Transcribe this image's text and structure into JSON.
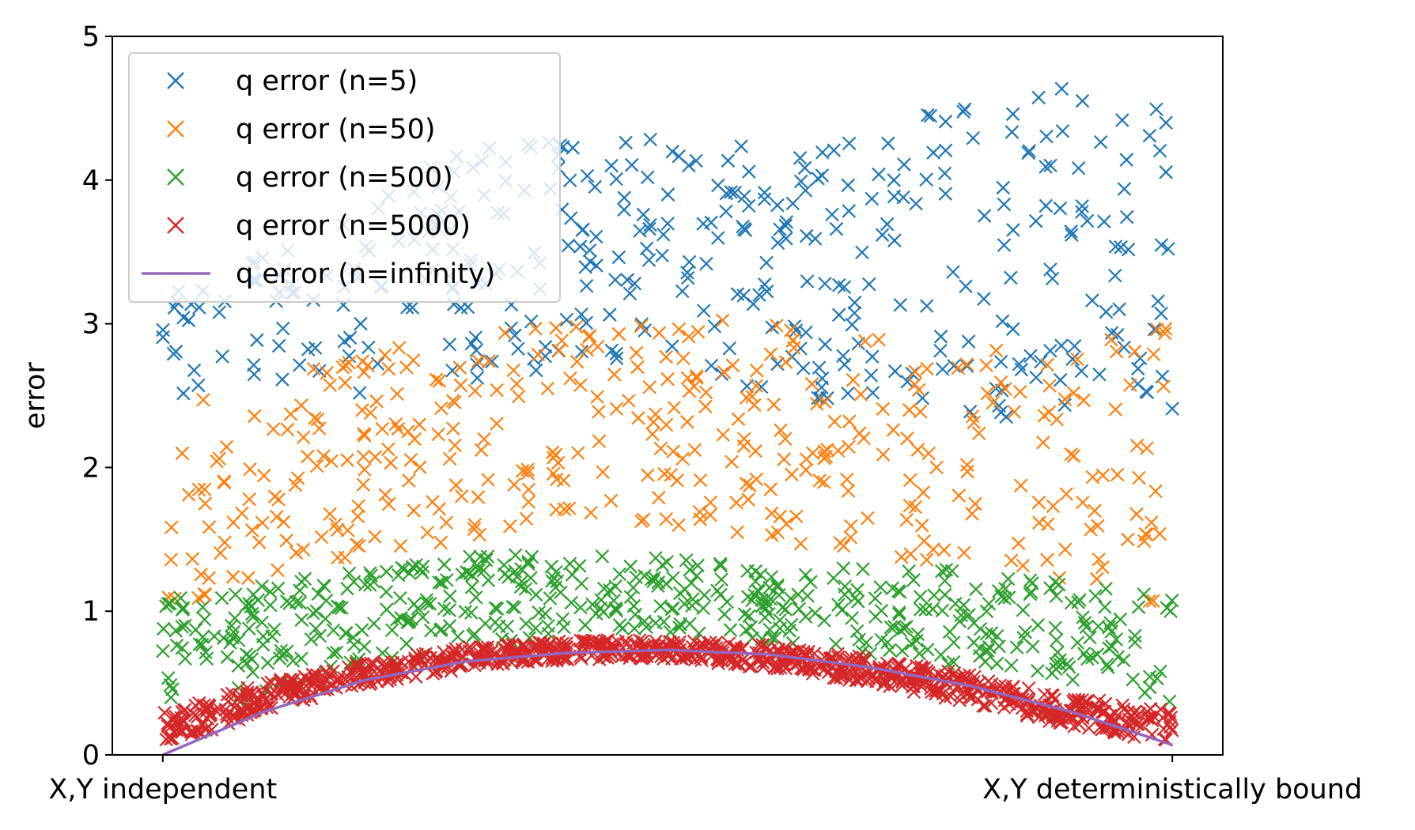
{
  "chart_data": {
    "type": "scatter",
    "title": "",
    "xlabel": "",
    "ylabel": "error",
    "xlim": [
      -0.05,
      1.05
    ],
    "ylim": [
      0,
      5
    ],
    "x_ticks": [
      {
        "value": 0,
        "label": "X,Y independent"
      },
      {
        "value": 1,
        "label": "X,Y deterministically bound"
      }
    ],
    "y_ticks": [
      0,
      1,
      2,
      3,
      4,
      5
    ],
    "grid": false,
    "legend_position": "upper-left",
    "series": [
      {
        "name": "q error (n=5)",
        "kind": "scatter",
        "marker": "x",
        "color": "#1f77b4",
        "count": 400,
        "envelope_x": [
          0,
          0.1,
          0.2,
          0.3,
          0.4,
          0.5,
          0.6,
          0.7,
          0.8,
          0.9,
          1.0
        ],
        "envelope_low": [
          2.5,
          2.5,
          2.5,
          2.6,
          2.7,
          2.8,
          2.5,
          2.4,
          2.3,
          2.4,
          2.4
        ],
        "envelope_high": [
          3.4,
          3.6,
          3.9,
          4.2,
          4.3,
          4.3,
          4.3,
          4.3,
          4.6,
          4.8,
          4.9
        ]
      },
      {
        "name": "q error (n=50)",
        "kind": "scatter",
        "marker": "x",
        "color": "#ff7f0e",
        "count": 400,
        "envelope_x": [
          0,
          0.1,
          0.2,
          0.3,
          0.4,
          0.5,
          0.6,
          0.7,
          0.8,
          0.9,
          1.0
        ],
        "envelope_low": [
          0.9,
          1.2,
          1.4,
          1.5,
          1.6,
          1.6,
          1.5,
          1.4,
          1.3,
          1.2,
          1.0
        ],
        "envelope_high": [
          2.4,
          2.6,
          2.8,
          2.9,
          3.0,
          3.1,
          3.0,
          2.9,
          2.8,
          2.9,
          3.0
        ]
      },
      {
        "name": "q error (n=500)",
        "kind": "scatter",
        "marker": "x",
        "color": "#2ca02c",
        "count": 500,
        "envelope_x": [
          0,
          0.1,
          0.2,
          0.3,
          0.4,
          0.5,
          0.6,
          0.7,
          0.8,
          0.9,
          1.0
        ],
        "envelope_low": [
          0.2,
          0.4,
          0.6,
          0.75,
          0.85,
          0.85,
          0.8,
          0.7,
          0.6,
          0.5,
          0.3
        ],
        "envelope_high": [
          1.1,
          1.2,
          1.3,
          1.4,
          1.4,
          1.4,
          1.3,
          1.3,
          1.3,
          1.2,
          1.1
        ]
      },
      {
        "name": "q error (n=5000)",
        "kind": "scatter",
        "marker": "x",
        "color": "#d62728",
        "count": 900,
        "envelope_x": [
          0,
          0.1,
          0.2,
          0.3,
          0.4,
          0.5,
          0.6,
          0.7,
          0.8,
          0.9,
          1.0
        ],
        "envelope_low": [
          0.05,
          0.3,
          0.48,
          0.6,
          0.66,
          0.67,
          0.6,
          0.5,
          0.36,
          0.2,
          0.08
        ],
        "envelope_high": [
          0.3,
          0.5,
          0.65,
          0.75,
          0.8,
          0.8,
          0.77,
          0.68,
          0.56,
          0.4,
          0.32
        ]
      },
      {
        "name": "q error (n=infinity)",
        "kind": "line",
        "color": "#9467bd",
        "x": [
          0,
          0.1,
          0.2,
          0.3,
          0.4,
          0.5,
          0.6,
          0.7,
          0.8,
          0.9,
          1.0
        ],
        "y": [
          0.0,
          0.3,
          0.52,
          0.65,
          0.71,
          0.73,
          0.7,
          0.61,
          0.48,
          0.3,
          0.07
        ]
      }
    ]
  }
}
